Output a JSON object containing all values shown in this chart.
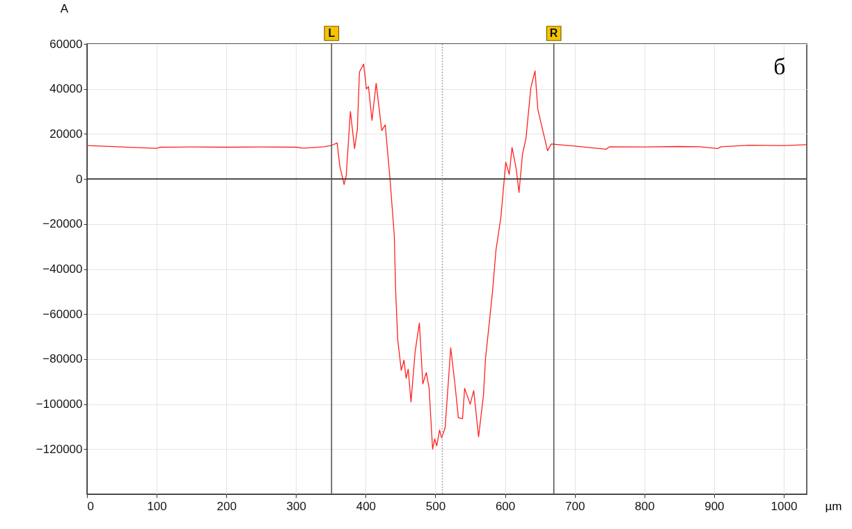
{
  "chart_data": {
    "type": "line",
    "xlabel": "µm",
    "ylabel": "A",
    "annotations": [
      "б"
    ],
    "x": [
      0,
      20,
      50,
      100,
      105,
      150,
      200,
      250,
      300,
      310,
      340,
      350,
      359,
      363,
      369,
      372,
      378,
      384,
      388,
      391,
      397,
      401,
      404,
      409,
      415,
      423,
      428,
      435,
      441,
      443,
      446,
      451,
      455,
      458,
      461,
      465,
      471,
      477,
      482,
      487,
      491,
      496,
      499,
      502,
      506,
      509,
      514,
      522,
      528,
      533,
      539,
      542,
      550,
      555,
      562,
      569,
      572,
      577,
      582,
      587,
      594,
      599,
      601,
      606,
      610,
      616,
      620,
      625,
      630,
      637,
      643,
      647,
      661,
      666,
      700,
      745,
      750,
      800,
      850,
      880,
      905,
      910,
      950,
      1000,
      1033
    ],
    "series": [
      {
        "color": "#ff2020",
        "values": [
          14800,
          14600,
          14200,
          13600,
          14100,
          14200,
          14100,
          14200,
          14100,
          13700,
          14300,
          14800,
          16000,
          5500,
          -2500,
          1500,
          30000,
          13500,
          22000,
          47500,
          51000,
          40000,
          41000,
          26000,
          42500,
          21500,
          24000,
          -500,
          -25000,
          -50000,
          -71500,
          -85000,
          -80500,
          -88500,
          -84500,
          -99000,
          -76500,
          -64000,
          -91000,
          -86000,
          -93000,
          -120000,
          -115500,
          -118500,
          -111500,
          -115000,
          -110500,
          -75000,
          -91000,
          -106000,
          -106500,
          -93000,
          -100000,
          -94000,
          -114500,
          -96000,
          -79500,
          -65000,
          -50000,
          -31500,
          -17000,
          500,
          7500,
          2000,
          14000,
          4500,
          -6000,
          11000,
          18000,
          40500,
          48000,
          31000,
          12500,
          15500,
          14600,
          13200,
          14300,
          14200,
          14400,
          14300,
          13500,
          14300,
          15000,
          14800,
          15200
        ]
      }
    ],
    "xlim": [
      0,
      1033
    ],
    "ylim": [
      -140000,
      60000
    ],
    "xticks": [
      0,
      100,
      200,
      300,
      400,
      500,
      600,
      700,
      800,
      900,
      1000
    ],
    "yticks": [
      -120000,
      -100000,
      -80000,
      -60000,
      -40000,
      -20000,
      0,
      20000,
      40000,
      60000
    ],
    "grid": true,
    "marker": "none",
    "line_style": "solid",
    "ref_lines": [
      {
        "axis": "y",
        "value": 0,
        "label": null,
        "color": "#333333",
        "line_style": "solid"
      },
      {
        "axis": "x",
        "value": 351,
        "label": "L",
        "color": "#555555",
        "line_style": "solid"
      },
      {
        "axis": "x",
        "value": 670,
        "label": "R",
        "color": "#555555",
        "line_style": "solid"
      },
      {
        "axis": "x",
        "value": 510,
        "label": null,
        "color": "#aaaaaa",
        "line_style": "dotted"
      }
    ]
  }
}
